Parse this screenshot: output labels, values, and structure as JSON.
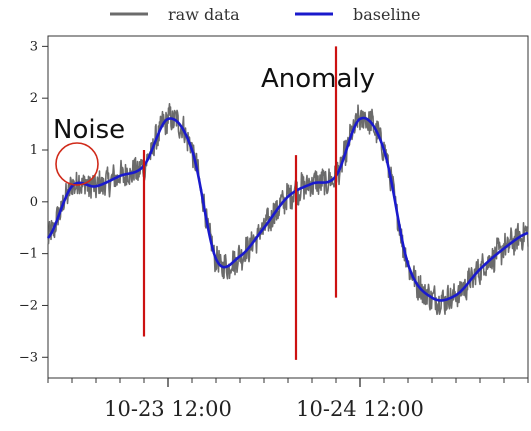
{
  "chart_data": {
    "type": "line",
    "ylim": [
      -3.4,
      3.2
    ],
    "x_range": [
      "2023-10-22 21:00",
      "2023-10-25 09:00"
    ],
    "yticks": [
      3,
      2,
      1,
      0,
      -1,
      -2,
      -3
    ],
    "ytick_labels": [
      "3",
      "2",
      "1",
      "0",
      "−1",
      "−2",
      "−3"
    ],
    "xticks": [
      "2023-10-23 12:00",
      "2023-10-24 12:00"
    ],
    "xtick_labels": [
      "10-23 12:00",
      "10-24 12:00"
    ],
    "legend": {
      "placement": "top-center",
      "entries": [
        "raw data",
        "baseline"
      ]
    },
    "series": [
      {
        "name": "baseline",
        "color": "#1a1acc",
        "x": [
          "2023-10-22 21:00",
          "2023-10-23 00:00",
          "2023-10-23 03:00",
          "2023-10-23 06:00",
          "2023-10-23 09:00",
          "2023-10-23 12:00",
          "2023-10-23 15:00",
          "2023-10-23 18:00",
          "2023-10-23 21:00",
          "2023-10-24 00:00",
          "2023-10-24 03:00",
          "2023-10-24 06:00",
          "2023-10-24 09:00",
          "2023-10-24 12:00",
          "2023-10-24 15:00",
          "2023-10-24 18:00",
          "2023-10-24 21:00",
          "2023-10-25 00:00",
          "2023-10-25 03:00",
          "2023-10-25 06:00",
          "2023-10-25 09:00"
        ],
        "y": [
          -0.7,
          0.3,
          0.3,
          0.5,
          0.7,
          1.6,
          1.0,
          -1.1,
          -1.05,
          -0.5,
          0.1,
          0.35,
          0.5,
          1.6,
          1.0,
          -1.2,
          -1.85,
          -1.8,
          -1.3,
          -0.9,
          -0.6
        ]
      },
      {
        "name": "raw data",
        "color": "#6b6b6b",
        "x": [
          "2023-10-22 21:00",
          "2023-10-23 00:00",
          "2023-10-23 03:00",
          "2023-10-23 06:00",
          "2023-10-23 09:00",
          "2023-10-23 12:00",
          "2023-10-23 15:00",
          "2023-10-23 18:00",
          "2023-10-23 21:00",
          "2023-10-24 00:00",
          "2023-10-24 03:00",
          "2023-10-24 06:00",
          "2023-10-24 09:00",
          "2023-10-24 12:00",
          "2023-10-24 15:00",
          "2023-10-24 18:00",
          "2023-10-24 21:00",
          "2023-10-25 00:00",
          "2023-10-25 03:00",
          "2023-10-25 06:00",
          "2023-10-25 09:00"
        ],
        "y": [
          -0.7,
          0.3,
          0.3,
          0.5,
          0.7,
          1.6,
          1.0,
          -1.1,
          -1.05,
          -0.5,
          0.1,
          0.35,
          0.5,
          1.6,
          1.0,
          -1.2,
          -1.85,
          -1.8,
          -1.3,
          -0.9,
          -0.6
        ],
        "noise_amplitude": 0.25
      }
    ],
    "anomalies": [
      {
        "x": "2023-10-23 09:00",
        "y_top": 1.0,
        "y_bottom": -2.6
      },
      {
        "x": "2023-10-24 04:00",
        "y_top": 0.9,
        "y_bottom": -3.05
      },
      {
        "x": "2023-10-24 09:00",
        "y_top": 3.0,
        "y_bottom": -1.85
      }
    ],
    "anomaly_color": "#cc1111",
    "annotations": [
      {
        "text": "Noise",
        "x": "2023-10-22 23:00",
        "y": 0.7
      },
      {
        "text": "Anomaly",
        "x": "2023-10-24 06:00",
        "y": 2.4
      }
    ]
  }
}
